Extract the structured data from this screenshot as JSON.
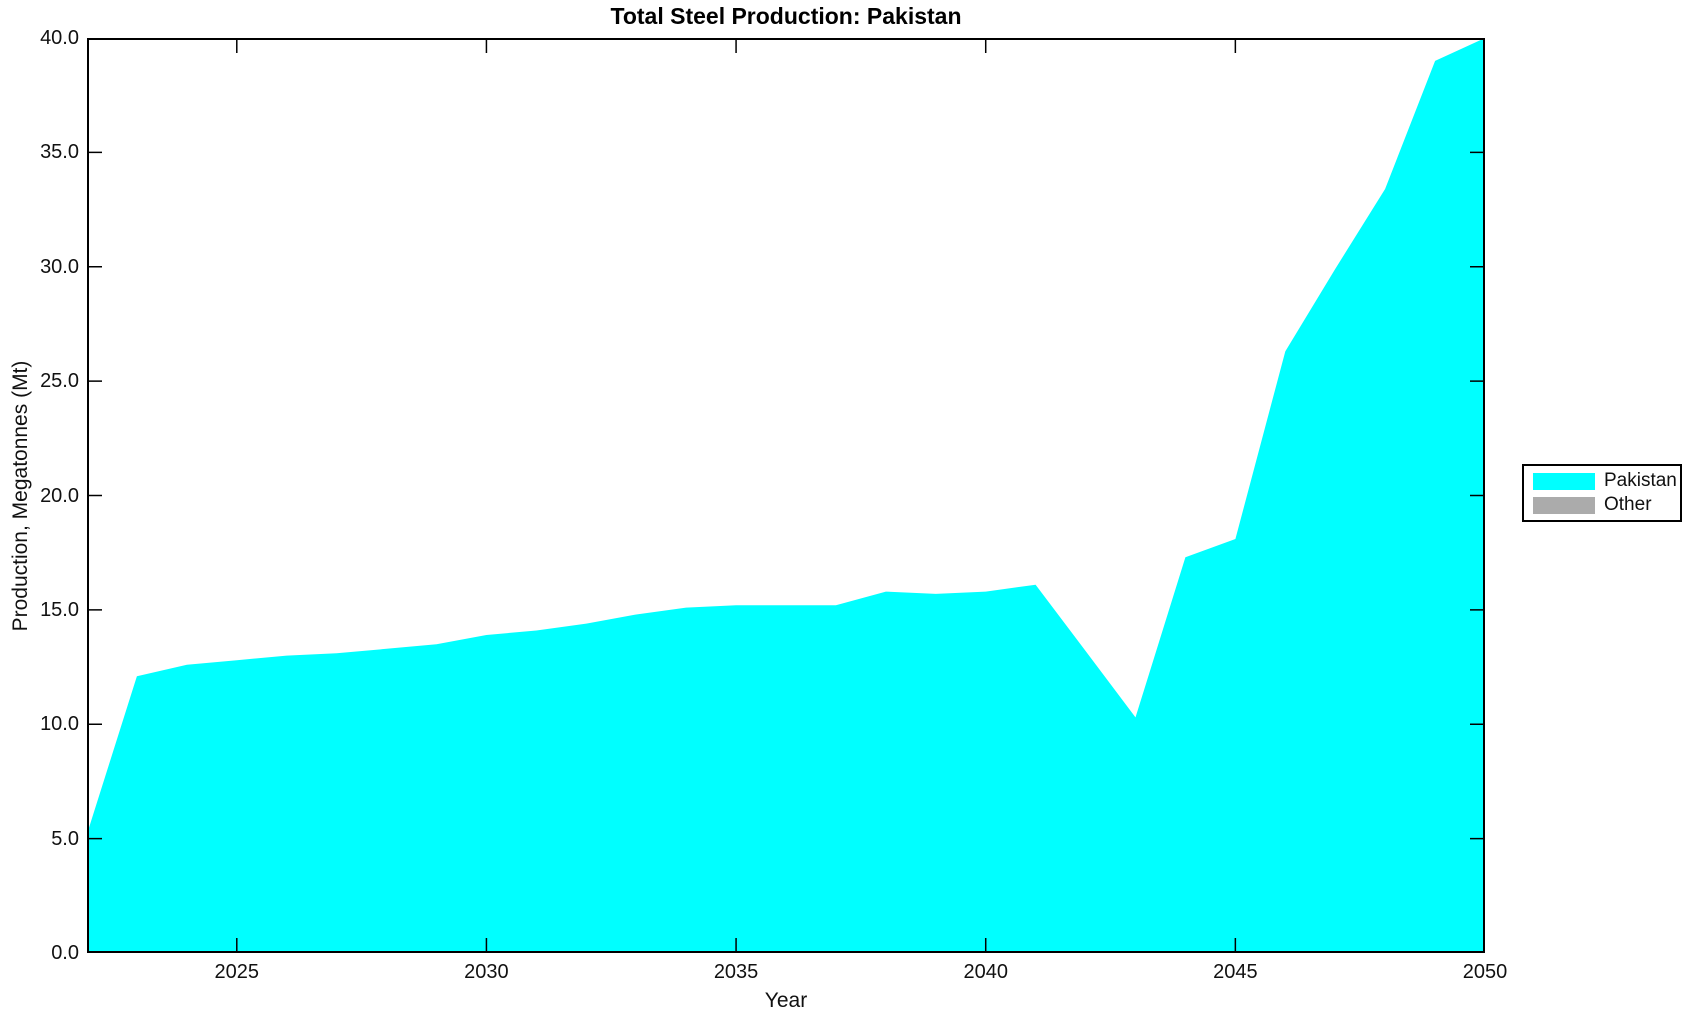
{
  "title": "Total Steel Production: Pakistan",
  "axes": {
    "xlabel": "Year",
    "ylabel": "Production, Megatonnes (Mt)",
    "xticks": [
      {
        "value": 2025,
        "label": "2025"
      },
      {
        "value": 2030,
        "label": "2030"
      },
      {
        "value": 2035,
        "label": "2035"
      },
      {
        "value": 2040,
        "label": "2040"
      },
      {
        "value": 2045,
        "label": "2045"
      },
      {
        "value": 2050,
        "label": "2050"
      }
    ],
    "yticks": [
      {
        "value": 0,
        "label": "0.0"
      },
      {
        "value": 5,
        "label": "5.0"
      },
      {
        "value": 10,
        "label": "10.0"
      },
      {
        "value": 15,
        "label": "15.0"
      },
      {
        "value": 20,
        "label": "20.0"
      },
      {
        "value": 25,
        "label": "25.0"
      },
      {
        "value": 30,
        "label": "30.0"
      },
      {
        "value": 35,
        "label": "35.0"
      },
      {
        "value": 40,
        "label": "40.0"
      }
    ]
  },
  "legend": {
    "items": [
      {
        "label": "Pakistan",
        "color": "#00FFFF"
      },
      {
        "label": "Other",
        "color": "#ABABAB"
      }
    ]
  },
  "colors": {
    "series_fill": "#00FFFF",
    "axis": "#000000"
  },
  "chart_data": {
    "type": "area",
    "title": "Total Steel Production: Pakistan",
    "xlabel": "Year",
    "ylabel": "Production, Megatonnes (Mt)",
    "xlim": [
      2022,
      2050
    ],
    "ylim": [
      0,
      40
    ],
    "grid": false,
    "legend_position": "east",
    "x": [
      2022,
      2023,
      2024,
      2025,
      2026,
      2027,
      2028,
      2029,
      2030,
      2031,
      2032,
      2033,
      2034,
      2035,
      2036,
      2037,
      2038,
      2039,
      2040,
      2041,
      2042,
      2043,
      2044,
      2045,
      2046,
      2047,
      2048,
      2049,
      2050
    ],
    "series": [
      {
        "name": "Pakistan",
        "color": "#00FFFF",
        "values": [
          5.2,
          12.1,
          12.6,
          12.8,
          13.0,
          13.1,
          13.3,
          13.5,
          13.9,
          14.1,
          14.4,
          14.8,
          15.1,
          15.2,
          15.2,
          15.2,
          15.8,
          15.7,
          15.8,
          16.1,
          13.2,
          10.3,
          17.3,
          18.1,
          26.3,
          29.9,
          33.4,
          39.0,
          40.1
        ]
      },
      {
        "name": "Other",
        "color": "#ABABAB",
        "values": []
      }
    ]
  }
}
